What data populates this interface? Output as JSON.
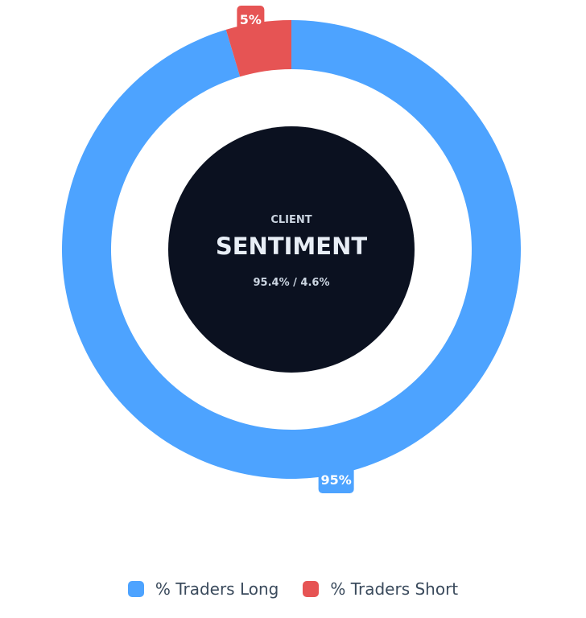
{
  "chart_data": {
    "type": "pie",
    "categories": [
      "% Traders Long",
      "% Traders Short"
    ],
    "values": [
      95.4,
      4.6
    ],
    "data_labels": [
      "95%",
      "5%"
    ],
    "colors": [
      "#4da3ff",
      "#e65454"
    ],
    "center": {
      "subtitle": "CLIENT",
      "title": "SENTIMENT",
      "ratio": "95.4% / 4.6%"
    },
    "legend": {
      "placement": "bottom-center",
      "items": [
        "% Traders Long",
        "% Traders Short"
      ]
    }
  }
}
